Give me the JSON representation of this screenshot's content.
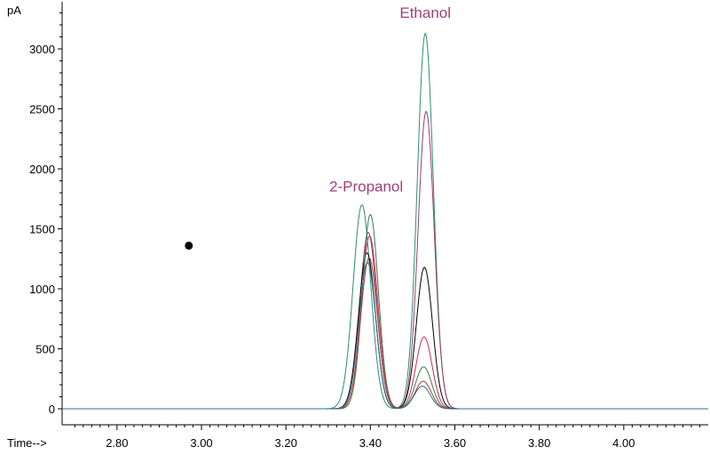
{
  "chart_data": {
    "type": "line",
    "ylabel": "pA",
    "xlabel": "Time-->",
    "xlim": [
      2.67,
      4.2
    ],
    "ylim": [
      -70,
      3380
    ],
    "x_ticks": [
      2.8,
      3.0,
      3.2,
      3.4,
      3.6,
      3.8,
      4.0
    ],
    "x_tick_labels": [
      "2.80",
      "3.00",
      "3.20",
      "3.40",
      "3.60",
      "3.80",
      "4.00"
    ],
    "y_ticks": [
      0,
      500,
      1000,
      1500,
      2000,
      2500,
      3000
    ],
    "y_tick_labels": [
      "0",
      "500",
      "1000",
      "1500",
      "2000",
      "2500",
      "3000"
    ],
    "baseline": 0,
    "annotations": [
      {
        "text": "Ethanol",
        "x": 3.53,
        "y": 3260,
        "color": "#a0407a"
      },
      {
        "text": "2-Propanol",
        "x": 3.39,
        "y": 1810,
        "color": "#a0407a"
      }
    ],
    "marker": {
      "x": 2.97,
      "y": 1360,
      "color": "#000000"
    },
    "peaks_note_series": [
      {
        "color": "#2a8f6e",
        "peaks": [
          {
            "x": 3.38,
            "height": 1700,
            "width": 0.021
          },
          {
            "x": 3.53,
            "height": 3130,
            "width": 0.019
          }
        ]
      },
      {
        "color": "#9a3a70",
        "peaks": [
          {
            "x": 3.395,
            "height": 1470,
            "width": 0.02
          },
          {
            "x": 3.532,
            "height": 2480,
            "width": 0.019
          }
        ]
      },
      {
        "color": "#000000",
        "peaks": [
          {
            "x": 3.392,
            "height": 1300,
            "width": 0.02
          },
          {
            "x": 3.528,
            "height": 1180,
            "width": 0.019
          }
        ]
      },
      {
        "color": "#c03050",
        "peaks": [
          {
            "x": 3.398,
            "height": 1440,
            "width": 0.02
          },
          {
            "x": 3.527,
            "height": 600,
            "width": 0.019
          }
        ]
      },
      {
        "color": "#3a7a50",
        "peaks": [
          {
            "x": 3.4,
            "height": 1620,
            "width": 0.019
          },
          {
            "x": 3.526,
            "height": 350,
            "width": 0.019
          }
        ]
      },
      {
        "color": "#b04030",
        "peaks": [
          {
            "x": 3.397,
            "height": 1260,
            "width": 0.02
          },
          {
            "x": 3.525,
            "height": 230,
            "width": 0.019
          }
        ]
      },
      {
        "color": "#2f6d9a",
        "peaks": [
          {
            "x": 3.393,
            "height": 1220,
            "width": 0.02
          },
          {
            "x": 3.523,
            "height": 190,
            "width": 0.019
          }
        ]
      }
    ]
  }
}
